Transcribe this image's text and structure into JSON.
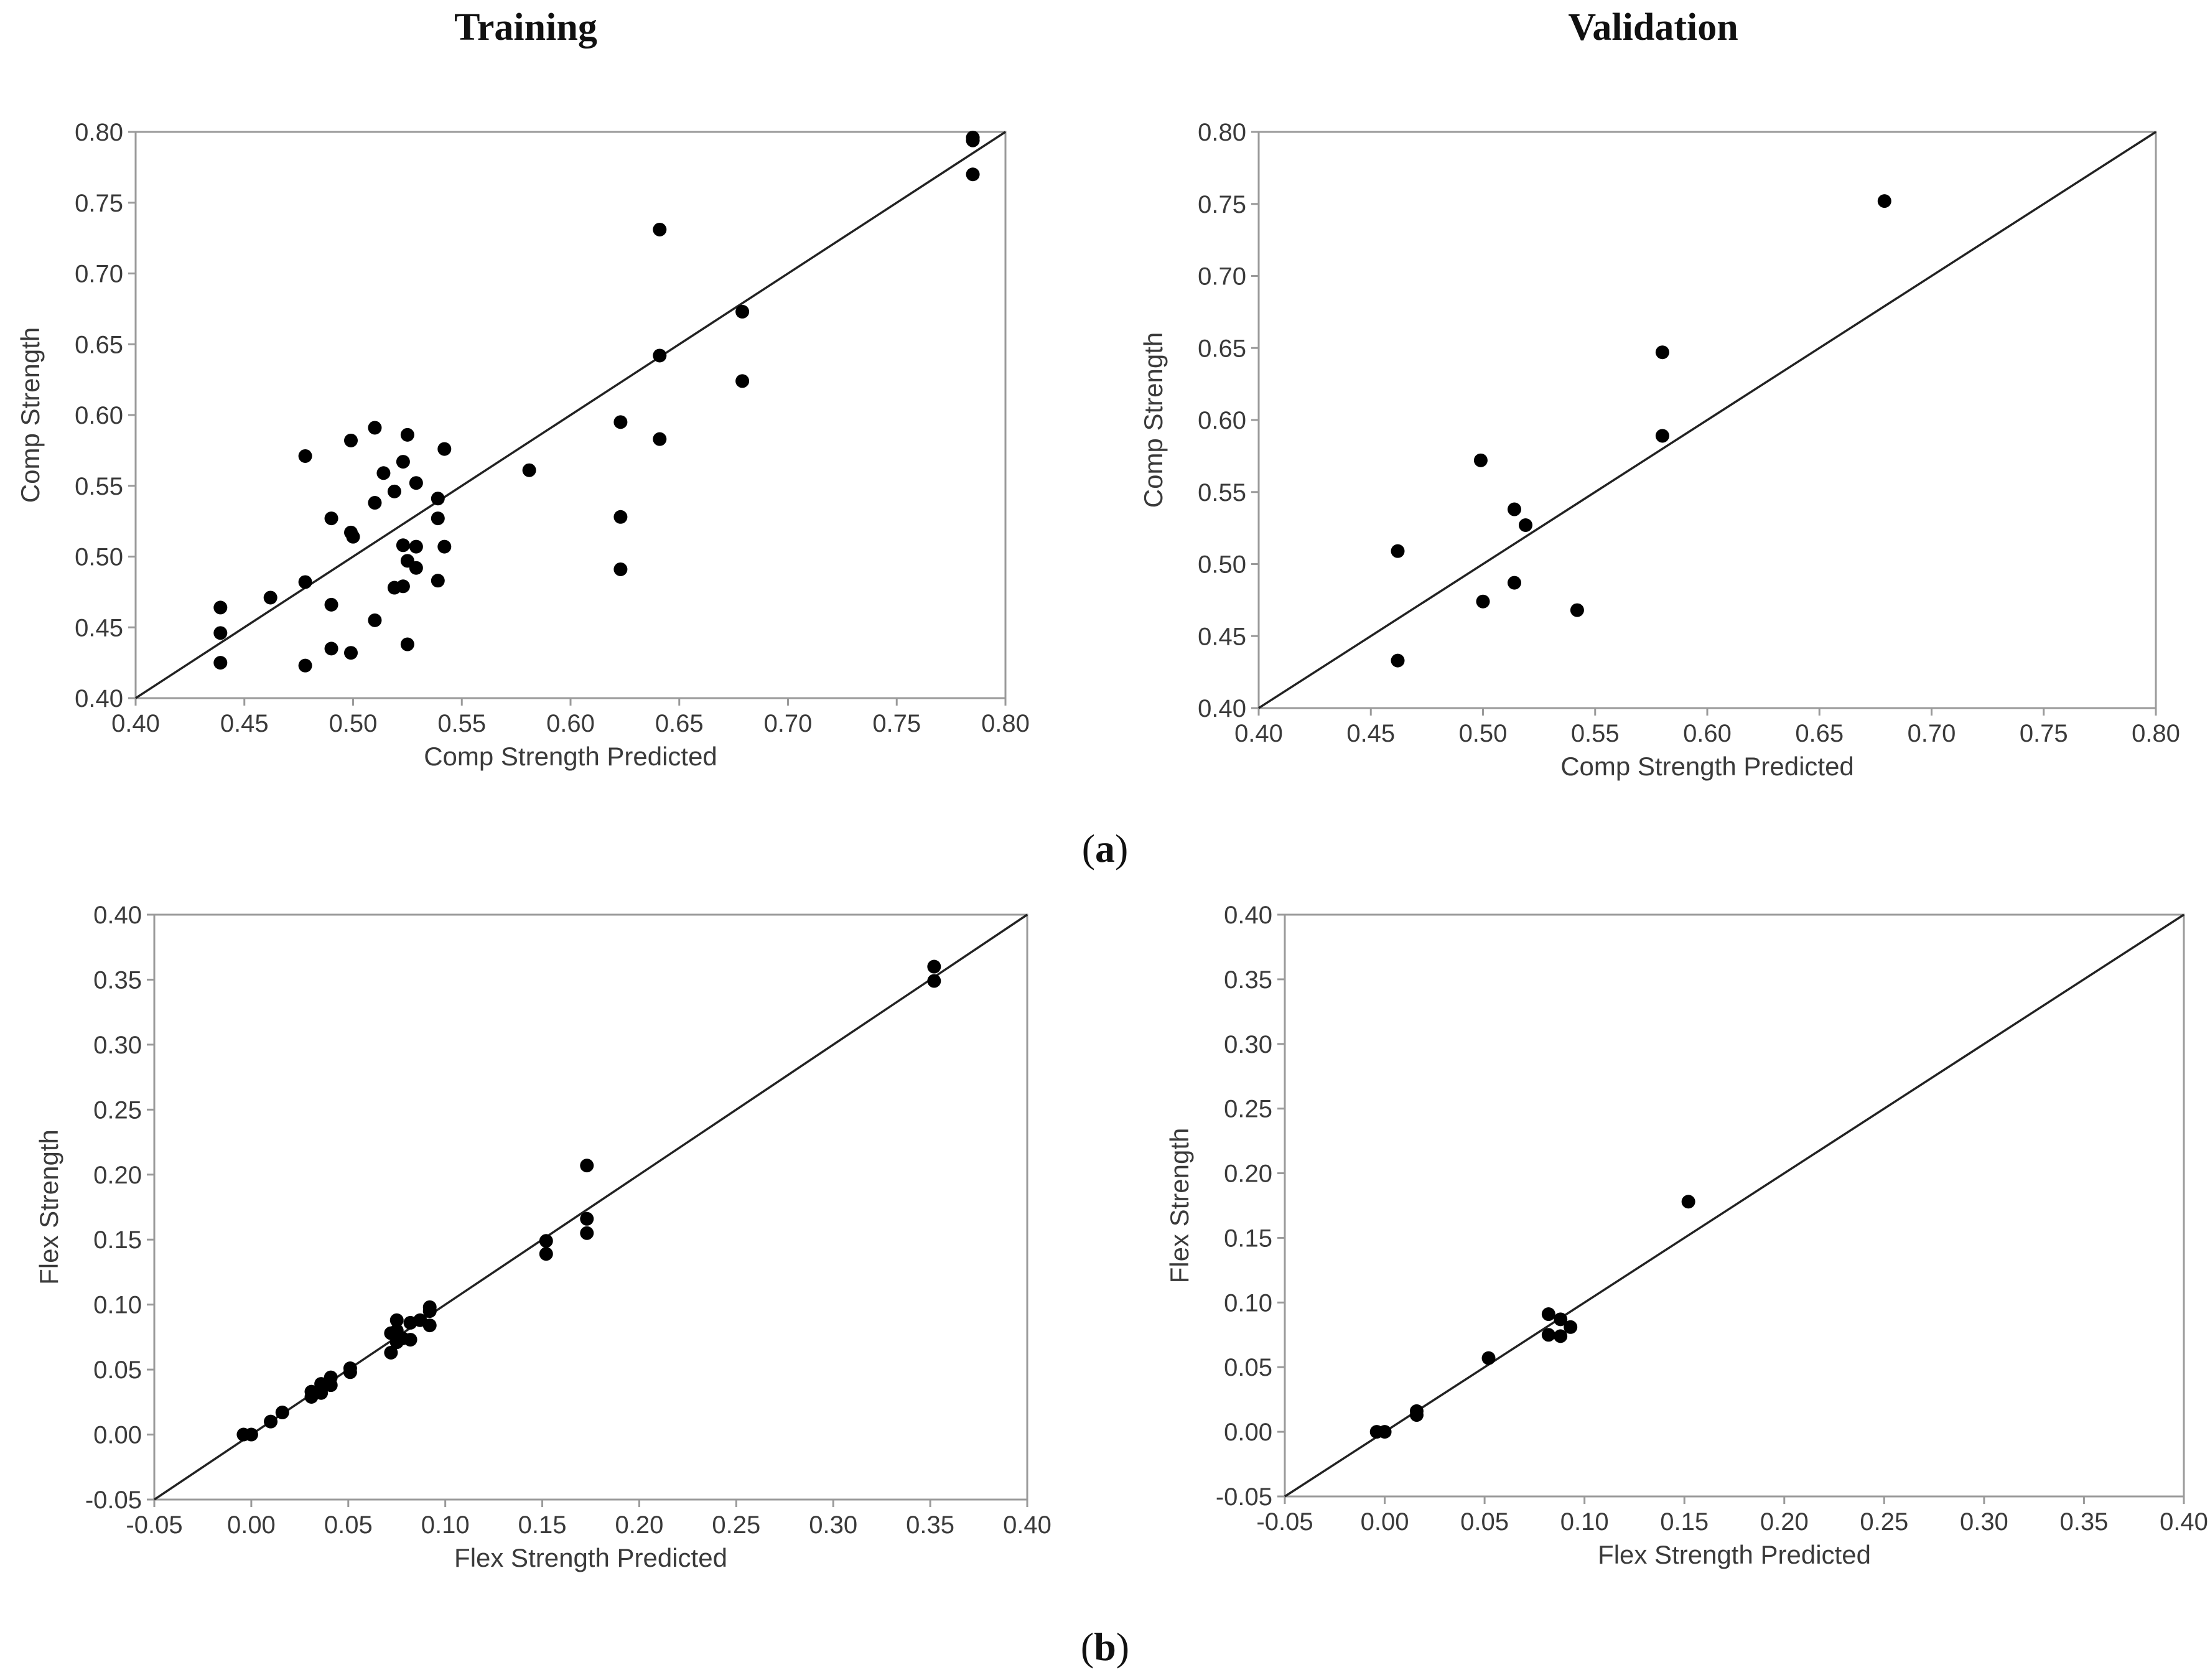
{
  "titles": {
    "training": "Training",
    "validation": "Validation"
  },
  "panel_labels": {
    "a": "a",
    "b": "b"
  },
  "chart_data": [
    {
      "id": "comp-training",
      "type": "scatter",
      "title": "Training",
      "xlabel": "Comp Strength Predicted",
      "ylabel": "Comp Strength",
      "xlim": [
        0.4,
        0.8
      ],
      "ylim": [
        0.4,
        0.8
      ],
      "xticks": [
        "0.40",
        "0.45",
        "0.50",
        "0.55",
        "0.60",
        "0.65",
        "0.70",
        "0.75",
        "0.80"
      ],
      "yticks": [
        "0.40",
        "0.45",
        "0.50",
        "0.55",
        "0.60",
        "0.65",
        "0.70",
        "0.75",
        "0.80"
      ],
      "reference_line": "y = x",
      "points": [
        [
          0.439,
          0.464
        ],
        [
          0.439,
          0.446
        ],
        [
          0.439,
          0.425
        ],
        [
          0.462,
          0.471
        ],
        [
          0.478,
          0.571
        ],
        [
          0.478,
          0.482
        ],
        [
          0.478,
          0.423
        ],
        [
          0.49,
          0.527
        ],
        [
          0.49,
          0.466
        ],
        [
          0.49,
          0.435
        ],
        [
          0.499,
          0.582
        ],
        [
          0.499,
          0.517
        ],
        [
          0.5,
          0.514
        ],
        [
          0.499,
          0.432
        ],
        [
          0.51,
          0.591
        ],
        [
          0.51,
          0.538
        ],
        [
          0.51,
          0.455
        ],
        [
          0.514,
          0.559
        ],
        [
          0.519,
          0.546
        ],
        [
          0.519,
          0.478
        ],
        [
          0.523,
          0.567
        ],
        [
          0.523,
          0.508
        ],
        [
          0.523,
          0.479
        ],
        [
          0.525,
          0.586
        ],
        [
          0.525,
          0.497
        ],
        [
          0.525,
          0.438
        ],
        [
          0.529,
          0.552
        ],
        [
          0.529,
          0.507
        ],
        [
          0.529,
          0.492
        ],
        [
          0.539,
          0.541
        ],
        [
          0.539,
          0.527
        ],
        [
          0.539,
          0.483
        ],
        [
          0.542,
          0.576
        ],
        [
          0.542,
          0.507
        ],
        [
          0.581,
          0.561
        ],
        [
          0.623,
          0.595
        ],
        [
          0.623,
          0.528
        ],
        [
          0.623,
          0.491
        ],
        [
          0.641,
          0.731
        ],
        [
          0.641,
          0.642
        ],
        [
          0.641,
          0.583
        ],
        [
          0.679,
          0.673
        ],
        [
          0.679,
          0.624
        ],
        [
          0.785,
          0.796
        ],
        [
          0.785,
          0.794
        ],
        [
          0.785,
          0.77
        ]
      ]
    },
    {
      "id": "comp-validation",
      "type": "scatter",
      "title": "Validation",
      "xlabel": "Comp Strength Predicted",
      "ylabel": "Comp Strength",
      "xlim": [
        0.4,
        0.8
      ],
      "ylim": [
        0.4,
        0.8
      ],
      "xticks": [
        "0.40",
        "0.45",
        "0.50",
        "0.55",
        "0.60",
        "0.65",
        "0.70",
        "0.75",
        "0.80"
      ],
      "yticks": [
        "0.40",
        "0.45",
        "0.50",
        "0.55",
        "0.60",
        "0.65",
        "0.70",
        "0.75",
        "0.80"
      ],
      "reference_line": "y = x",
      "points": [
        [
          0.462,
          0.509
        ],
        [
          0.462,
          0.433
        ],
        [
          0.499,
          0.572
        ],
        [
          0.5,
          0.474
        ],
        [
          0.514,
          0.538
        ],
        [
          0.514,
          0.487
        ],
        [
          0.519,
          0.527
        ],
        [
          0.542,
          0.468
        ],
        [
          0.58,
          0.647
        ],
        [
          0.58,
          0.589
        ],
        [
          0.679,
          0.752
        ]
      ]
    },
    {
      "id": "flex-training",
      "type": "scatter",
      "xlabel": "Flex Strength Predicted",
      "ylabel": "Flex Strength",
      "xlim": [
        -0.05,
        0.4
      ],
      "ylim": [
        -0.05,
        0.4
      ],
      "xticks": [
        "-0.05",
        "0.00",
        "0.05",
        "0.10",
        "0.15",
        "0.20",
        "0.25",
        "0.30",
        "0.35",
        "0.40"
      ],
      "yticks": [
        "-0.05",
        "0.00",
        "0.05",
        "0.10",
        "0.15",
        "0.20",
        "0.25",
        "0.30",
        "0.35",
        "0.40"
      ],
      "reference_line": "y = x",
      "points": [
        [
          -0.004,
          0.0
        ],
        [
          0.0,
          0.0
        ],
        [
          0.01,
          0.01
        ],
        [
          0.016,
          0.017
        ],
        [
          0.031,
          0.033
        ],
        [
          0.031,
          0.029
        ],
        [
          0.036,
          0.039
        ],
        [
          0.036,
          0.032
        ],
        [
          0.041,
          0.044
        ],
        [
          0.041,
          0.038
        ],
        [
          0.051,
          0.051
        ],
        [
          0.051,
          0.048
        ],
        [
          0.072,
          0.078
        ],
        [
          0.072,
          0.063
        ],
        [
          0.075,
          0.088
        ],
        [
          0.075,
          0.08
        ],
        [
          0.075,
          0.071
        ],
        [
          0.078,
          0.074
        ],
        [
          0.082,
          0.086
        ],
        [
          0.082,
          0.073
        ],
        [
          0.087,
          0.088
        ],
        [
          0.092,
          0.098
        ],
        [
          0.092,
          0.095
        ],
        [
          0.092,
          0.084
        ],
        [
          0.152,
          0.149
        ],
        [
          0.152,
          0.139
        ],
        [
          0.173,
          0.207
        ],
        [
          0.173,
          0.166
        ],
        [
          0.173,
          0.155
        ],
        [
          0.352,
          0.36
        ],
        [
          0.352,
          0.349
        ]
      ]
    },
    {
      "id": "flex-validation",
      "type": "scatter",
      "xlabel": "Flex Strength Predicted",
      "ylabel": "Flex Strength",
      "xlim": [
        -0.05,
        0.4
      ],
      "ylim": [
        -0.05,
        0.4
      ],
      "xticks": [
        "-0.05",
        "0.00",
        "0.05",
        "0.10",
        "0.15",
        "0.20",
        "0.25",
        "0.30",
        "0.35",
        "0.40"
      ],
      "yticks": [
        "-0.05",
        "0.00",
        "0.05",
        "0.10",
        "0.15",
        "0.20",
        "0.25",
        "0.30",
        "0.35",
        "0.40"
      ],
      "reference_line": "y = x",
      "points": [
        [
          -0.004,
          0.0
        ],
        [
          0.0,
          0.0
        ],
        [
          0.016,
          0.016
        ],
        [
          0.016,
          0.013
        ],
        [
          0.052,
          0.057
        ],
        [
          0.082,
          0.091
        ],
        [
          0.082,
          0.075
        ],
        [
          0.088,
          0.087
        ],
        [
          0.088,
          0.074
        ],
        [
          0.093,
          0.081
        ],
        [
          0.152,
          0.178
        ]
      ]
    }
  ]
}
